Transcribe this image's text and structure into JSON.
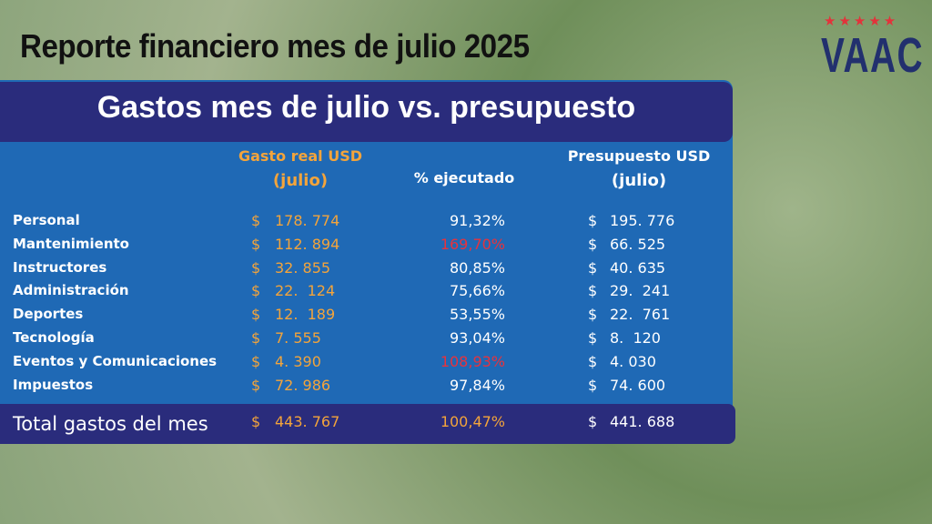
{
  "header": {
    "title": "Reporte financiero mes de julio 2025",
    "logo": "VAAC",
    "logo_stars": "★★★★★"
  },
  "table": {
    "title": "Gastos mes de julio vs. presupuesto",
    "columns": [
      [
        "Gasto real USD",
        "(julio)"
      ],
      [
        "% ejecutado"
      ],
      [
        "Presupuesto USD",
        "(julio)"
      ]
    ],
    "rows": [
      [
        "Personal",
        "$",
        "178. 774",
        "91,32%",
        "$",
        "195. 776"
      ],
      [
        "Mantenimiento",
        "$",
        "112. 894",
        "169,70%",
        "$",
        "66. 525"
      ],
      [
        "Instructores",
        "$",
        "32. 855",
        "80,85%",
        "$",
        "40. 635"
      ],
      [
        "Administración",
        "$",
        "22.  124",
        "75,66%",
        "$",
        "29.  241"
      ],
      [
        "Deportes",
        "$",
        "12.  189",
        "53,55%",
        "$",
        "22.  761"
      ],
      [
        "Tecnología",
        "$",
        "7. 555",
        "93,04%",
        "$",
        "8.  120"
      ],
      [
        "Eventos y Comunicaciones",
        "$",
        "4. 390",
        "108,93%",
        "$",
        "4. 030"
      ],
      [
        "Impuestos",
        "$",
        "72. 986",
        "97,84%",
        "$",
        "74. 600"
      ]
    ],
    "highlight_rows": [
      1,
      6
    ],
    "highlight_color": "#e8323c",
    "total": [
      "Total gastos del mes",
      "$",
      "443. 767",
      "100,47%",
      "$",
      "441. 688"
    ]
  }
}
